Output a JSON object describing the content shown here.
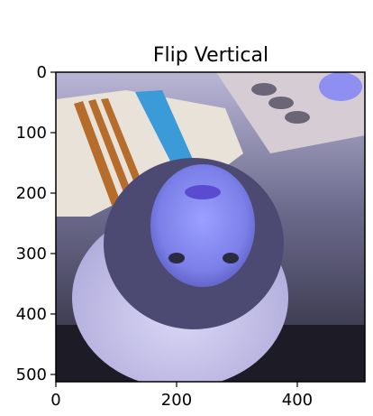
{
  "chart_data": {
    "type": "image",
    "title": "Flip Vertical",
    "xlabel": "",
    "ylabel": "",
    "xlim": [
      0,
      512
    ],
    "ylim": [
      512,
      0
    ],
    "xticks": [
      0,
      200,
      400
    ],
    "yticks": [
      0,
      100,
      200,
      300,
      400,
      500
    ],
    "xtick_labels": [
      "0",
      "200",
      "400"
    ],
    "ytick_labels": [
      "0",
      "100",
      "200",
      "300",
      "400",
      "500"
    ],
    "grid": false,
    "colors": {
      "axis": "#000000",
      "image_tint": "#7f7fe6"
    }
  }
}
